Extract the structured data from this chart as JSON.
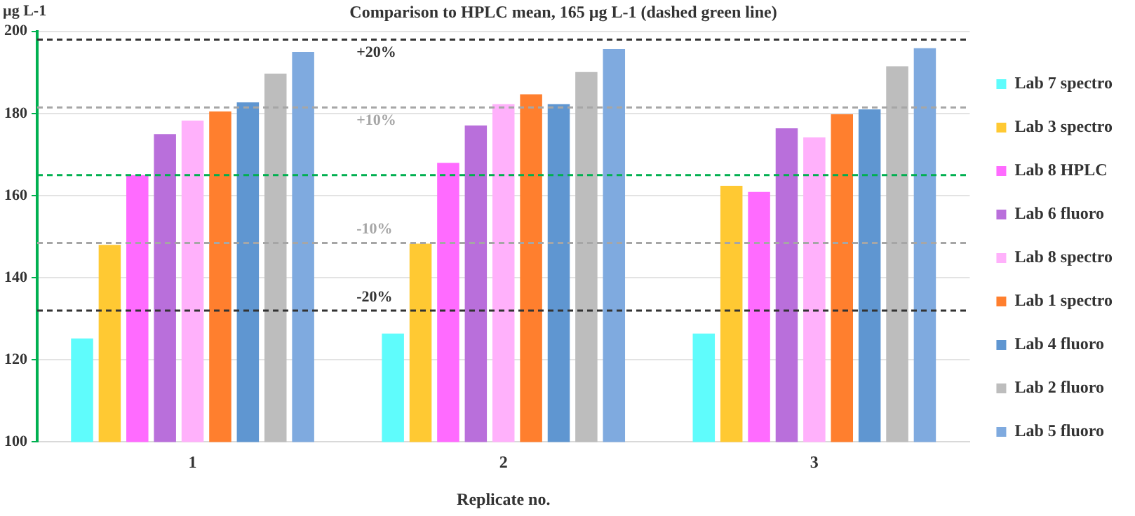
{
  "chart_data": {
    "type": "bar",
    "title": "Comparison to HPLC mean, 165 µg L-1 (dashed green line)",
    "xlabel": "Replicate no.",
    "ylabel": "µg L-1",
    "categories": [
      "1",
      "2",
      "3"
    ],
    "series": [
      {
        "name": "Lab 7 spectro",
        "color": "#5ffcfc",
        "values": [
          125.2,
          126.4,
          126.4
        ]
      },
      {
        "name": "Lab 3 spectro",
        "color": "#ffc933",
        "values": [
          148,
          148.3,
          162.4
        ]
      },
      {
        "name": "Lab 8 HPLC",
        "color": "#ff6bff",
        "values": [
          165,
          168,
          160.9
        ]
      },
      {
        "name": "Lab 6 fluoro",
        "color": "#b96fdb",
        "values": [
          175,
          177.1,
          176.4
        ]
      },
      {
        "name": "Lab 8 spectro",
        "color": "#ffb1fb",
        "values": [
          178.3,
          182.3,
          174.2
        ]
      },
      {
        "name": "Lab 1 spectro",
        "color": "#ff7f2e",
        "values": [
          180.5,
          184.7,
          179.8
        ]
      },
      {
        "name": "Lab 4 fluoro",
        "color": "#5f96d1",
        "values": [
          182.7,
          182.3,
          181
        ]
      },
      {
        "name": "Lab 2 fluoro",
        "color": "#bdbdbd",
        "values": [
          189.7,
          190.1,
          191.5
        ]
      },
      {
        "name": "Lab 5 fluoro",
        "color": "#7faadf",
        "values": [
          195,
          195.7,
          195.9
        ]
      }
    ],
    "ylim": [
      100,
      200
    ],
    "yticks": [
      100,
      120,
      140,
      160,
      180,
      200
    ],
    "grid": "y",
    "legend": "right",
    "ref_lines": [
      {
        "axis": "y",
        "value": 198,
        "color": "#333333",
        "line_style": "dashed"
      },
      {
        "axis": "y",
        "value": 181.5,
        "color": "#a6a6a6",
        "line_style": "dashed"
      },
      {
        "axis": "y",
        "value": 165,
        "color": "#00b050",
        "line_style": "dashed"
      },
      {
        "axis": "y",
        "value": 148.5,
        "color": "#a6a6a6",
        "line_style": "dashed"
      },
      {
        "axis": "y",
        "value": 132,
        "color": "#333333",
        "line_style": "dashed"
      }
    ],
    "annotations": [
      {
        "text": "+20%",
        "y": 198
      },
      {
        "text": "+10%",
        "y": 181.5
      },
      {
        "text": "-10%",
        "y": 148.5
      },
      {
        "text": "-20%",
        "y": 132
      }
    ]
  }
}
